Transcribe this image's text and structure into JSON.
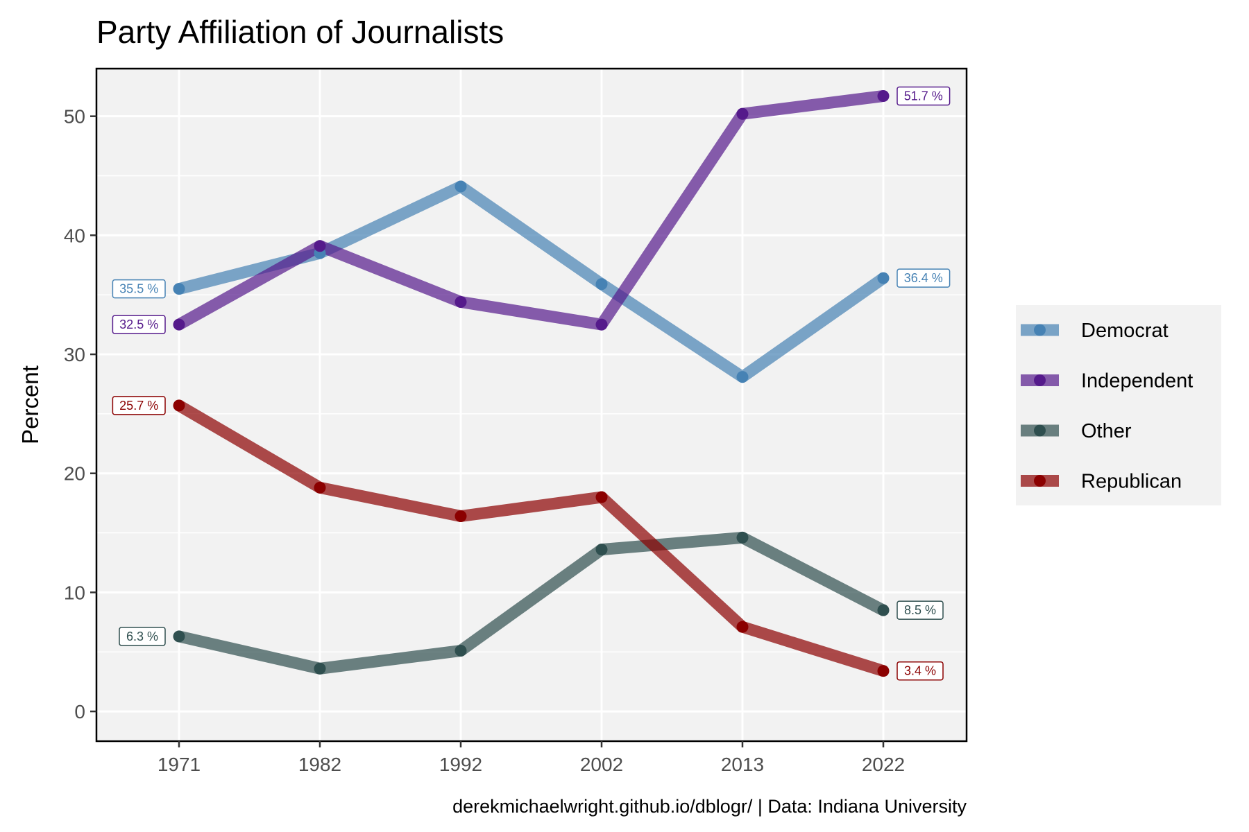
{
  "chart_data": {
    "type": "line",
    "title": "Party Affiliation of Journalists",
    "xlabel": "",
    "ylabel": "Percent",
    "caption": "derekmichaelwright.github.io/dblogr/ | Data: Indiana University",
    "x": [
      "1971",
      "1982",
      "1992",
      "2002",
      "2013",
      "2022"
    ],
    "ylim": [
      -2.5,
      54
    ],
    "y_ticks": [
      0,
      10,
      20,
      30,
      40,
      50
    ],
    "grid": true,
    "legend_position": "right",
    "panel_background": "#f2f2f2",
    "series": [
      {
        "name": "Democrat",
        "color": "#4682b4",
        "values": [
          35.5,
          38.5,
          44.1,
          35.9,
          28.1,
          36.4
        ],
        "labels": [
          {
            "index": 0,
            "text": "35.5 %",
            "side": "left"
          },
          {
            "index": 5,
            "text": "36.4 %",
            "side": "right"
          }
        ]
      },
      {
        "name": "Independent",
        "color": "#551a8b",
        "values": [
          32.5,
          39.1,
          34.4,
          32.5,
          50.2,
          51.7
        ],
        "labels": [
          {
            "index": 0,
            "text": "32.5 %",
            "side": "left"
          },
          {
            "index": 5,
            "text": "51.7 %",
            "side": "right"
          }
        ]
      },
      {
        "name": "Other",
        "color": "#2f4f4f",
        "values": [
          6.3,
          3.6,
          5.1,
          13.6,
          14.6,
          8.5
        ],
        "labels": [
          {
            "index": 0,
            "text": "6.3 %",
            "side": "left"
          },
          {
            "index": 5,
            "text": "8.5 %",
            "side": "right"
          }
        ]
      },
      {
        "name": "Republican",
        "color": "#8b0000",
        "values": [
          25.7,
          18.8,
          16.4,
          18.0,
          7.1,
          3.4
        ],
        "labels": [
          {
            "index": 0,
            "text": "25.7 %",
            "side": "left"
          },
          {
            "index": 5,
            "text": "3.4 %",
            "side": "right"
          }
        ]
      }
    ]
  }
}
